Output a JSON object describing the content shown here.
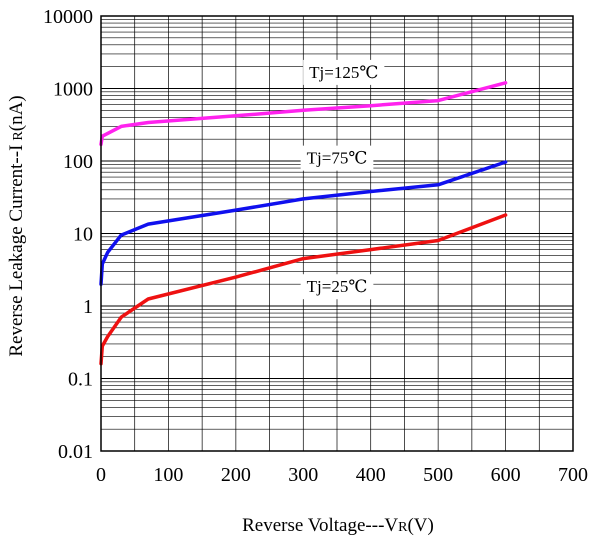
{
  "chart_data": {
    "type": "line",
    "title": "",
    "xlabel": "Reverse Voltage---VR(V)",
    "xlabel_main": "Reverse Voltage---V",
    "xlabel_sub": "R",
    "xlabel_tail": "(V)",
    "ylabel": "Reverse Leakage Current--I R(nA)",
    "ylabel_main": "Reverse Leakage Current--I",
    "ylabel_sub": "R",
    "ylabel_tail": "(nA)",
    "xlim": [
      0,
      700
    ],
    "ylim": [
      0.01,
      10000
    ],
    "yscale": "log",
    "grid": true,
    "x_ticks": [
      0,
      100,
      200,
      300,
      400,
      500,
      600,
      700
    ],
    "x_tick_labels": [
      "0",
      "100",
      "200",
      "300",
      "400",
      "500",
      "600",
      "700"
    ],
    "y_ticks": [
      0.01,
      0.1,
      1,
      10,
      100,
      1000,
      10000
    ],
    "y_tick_labels": [
      "0.01",
      "0.1",
      "1",
      "10",
      "100",
      "1000",
      "10000"
    ],
    "series": [
      {
        "name": "Tj=125℃",
        "color": "#ff22ee",
        "label_at": [
          360,
          1400
        ],
        "points": [
          [
            0,
            170
          ],
          [
            2,
            220
          ],
          [
            10,
            240
          ],
          [
            30,
            300
          ],
          [
            70,
            340
          ],
          [
            200,
            420
          ],
          [
            300,
            500
          ],
          [
            400,
            580
          ],
          [
            500,
            680
          ],
          [
            600,
            1200
          ]
        ]
      },
      {
        "name": "Tj=75℃",
        "color": "#1010ee",
        "label_at": [
          350,
          92
        ],
        "points": [
          [
            0,
            2.0
          ],
          [
            2,
            3.8
          ],
          [
            10,
            5.5
          ],
          [
            30,
            9.5
          ],
          [
            70,
            13.5
          ],
          [
            200,
            21
          ],
          [
            300,
            30
          ],
          [
            400,
            38
          ],
          [
            500,
            47
          ],
          [
            600,
            97
          ]
        ]
      },
      {
        "name": "Tj=25℃",
        "color": "#ee1111",
        "label_at": [
          350,
          1.55
        ],
        "points": [
          [
            0,
            0.16
          ],
          [
            2,
            0.28
          ],
          [
            10,
            0.38
          ],
          [
            30,
            0.7
          ],
          [
            70,
            1.25
          ],
          [
            200,
            2.5
          ],
          [
            300,
            4.5
          ],
          [
            400,
            6
          ],
          [
            500,
            8
          ],
          [
            600,
            18
          ]
        ]
      }
    ]
  }
}
